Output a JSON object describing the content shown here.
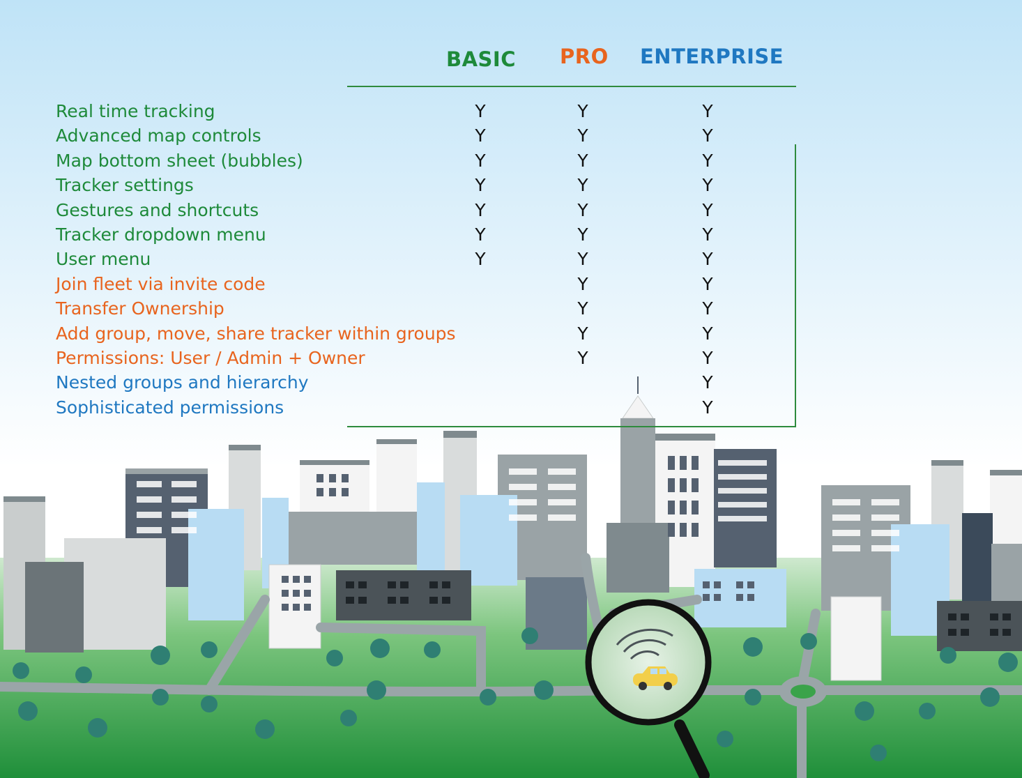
{
  "tiers": [
    {
      "label": "BASIC",
      "color": "#1e8a3a"
    },
    {
      "label": "PRO",
      "color": "#e8641e"
    },
    {
      "label": "ENTERPRISE",
      "color": "#1f78c1"
    }
  ],
  "features": [
    {
      "label": "Real time tracking",
      "color": "#1e8a3a",
      "basic": "Y",
      "pro": "Y",
      "enterprise": "Y"
    },
    {
      "label": "Advanced map controls",
      "color": "#1e8a3a",
      "basic": "Y",
      "pro": "Y",
      "enterprise": "Y"
    },
    {
      "label": "Map bottom sheet (bubbles)",
      "color": "#1e8a3a",
      "basic": "Y",
      "pro": "Y",
      "enterprise": "Y"
    },
    {
      "label": "Tracker settings",
      "color": "#1e8a3a",
      "basic": "Y",
      "pro": "Y",
      "enterprise": "Y"
    },
    {
      "label": "Gestures and shortcuts",
      "color": "#1e8a3a",
      "basic": "Y",
      "pro": "Y",
      "enterprise": "Y"
    },
    {
      "label": "Tracker dropdown menu",
      "color": "#1e8a3a",
      "basic": "Y",
      "pro": "Y",
      "enterprise": "Y"
    },
    {
      "label": "User menu",
      "color": "#1e8a3a",
      "basic": "Y",
      "pro": "Y",
      "enterprise": "Y"
    },
    {
      "label": "Join fleet via invite code",
      "color": "#e8641e",
      "basic": "",
      "pro": "Y",
      "enterprise": "Y"
    },
    {
      "label": "Transfer Ownership",
      "color": "#e8641e",
      "basic": "",
      "pro": "Y",
      "enterprise": "Y"
    },
    {
      "label": "Add group, move, share tracker within groups",
      "color": "#e8641e",
      "basic": "",
      "pro": "Y",
      "enterprise": "Y"
    },
    {
      "label": "Permissions: User / Admin + Owner",
      "color": "#e8641e",
      "basic": "",
      "pro": "Y",
      "enterprise": "Y"
    },
    {
      "label": "Nested groups and hierarchy",
      "color": "#1f78c1",
      "basic": "",
      "pro": "",
      "enterprise": "Y"
    },
    {
      "label": "Sophisticated permissions",
      "color": "#1f78c1",
      "basic": "",
      "pro": "",
      "enterprise": "Y"
    }
  ],
  "illustration": {
    "sky_top": "#bfe3f7",
    "ground": "#3aa34a",
    "road": "#9aa5a8",
    "car": "#f2cf4a",
    "magnifier": "#111111"
  }
}
